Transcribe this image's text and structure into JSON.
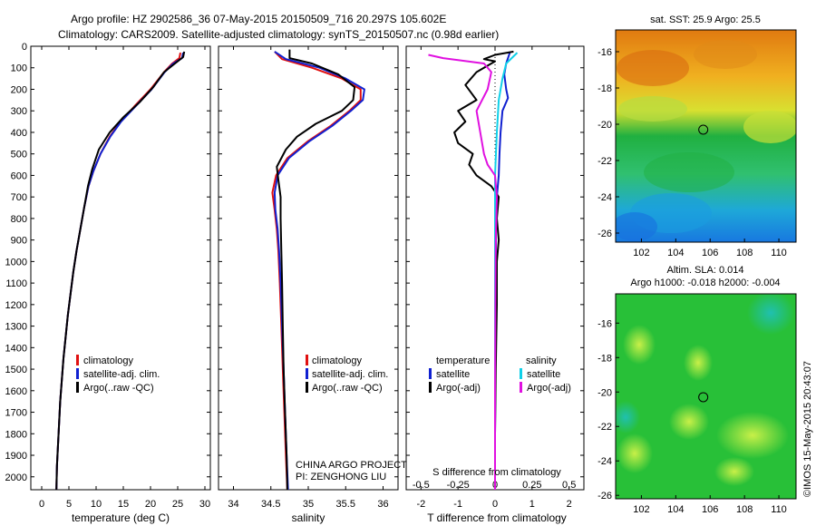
{
  "header": {
    "title_line1": "Argo profile: HZ 2902586_36 07-May-2015 20150509_716 20.297S 105.602E",
    "title_line2": "Climatology: CARS2009. Satellite-adjusted climatology: synTS_20150507.nc (0.98d earlier)"
  },
  "colors": {
    "climatology": "#e01010",
    "satellite": "#1020d0",
    "argo": "#000000",
    "sat_salinity": "#10d0e8",
    "argo_salinity": "#e010e0"
  },
  "chart_data": [
    {
      "id": "temperature",
      "type": "line",
      "xlabel": "temperature (deg C)",
      "ylabel": "",
      "xlim": [
        -2,
        31
      ],
      "ylim": [
        2060,
        0
      ],
      "xticks": [
        0,
        5,
        10,
        15,
        20,
        25,
        30
      ],
      "yticks": [
        0,
        100,
        200,
        300,
        400,
        500,
        600,
        700,
        800,
        900,
        1000,
        1100,
        1200,
        1300,
        1400,
        1500,
        1600,
        1700,
        1800,
        1900,
        2000
      ],
      "legend": [
        "climatology",
        "satellite-adj. clim.",
        "Argo(..raw -QC)"
      ],
      "series": [
        {
          "name": "climatology",
          "color_key": "climatology",
          "points": [
            [
              25.5,
              30
            ],
            [
              25.3,
              55
            ],
            [
              24,
              80
            ],
            [
              22.5,
              120
            ],
            [
              20,
              200
            ],
            [
              17,
              280
            ],
            [
              14.5,
              350
            ],
            [
              12.5,
              420
            ],
            [
              10.8,
              500
            ],
            [
              9.5,
              580
            ],
            [
              8.6,
              650
            ],
            [
              7.8,
              750
            ],
            [
              7.1,
              850
            ],
            [
              6.4,
              950
            ],
            [
              5.8,
              1050
            ],
            [
              5.3,
              1150
            ],
            [
              4.8,
              1250
            ],
            [
              4.4,
              1350
            ],
            [
              4,
              1450
            ],
            [
              3.7,
              1550
            ],
            [
              3.4,
              1650
            ],
            [
              3.2,
              1750
            ],
            [
              3,
              1850
            ],
            [
              2.8,
              1950
            ],
            [
              2.7,
              2060
            ]
          ]
        },
        {
          "name": "satellite-adj. clim.",
          "color_key": "satellite",
          "points": [
            [
              26,
              30
            ],
            [
              25.8,
              55
            ],
            [
              24.2,
              80
            ],
            [
              22.6,
              120
            ],
            [
              20.2,
              200
            ],
            [
              17.2,
              280
            ],
            [
              14.6,
              350
            ],
            [
              12.6,
              420
            ],
            [
              10.8,
              500
            ],
            [
              9.5,
              580
            ],
            [
              8.6,
              650
            ],
            [
              7.8,
              750
            ],
            [
              7.1,
              850
            ],
            [
              6.4,
              950
            ],
            [
              5.8,
              1050
            ],
            [
              5.3,
              1150
            ],
            [
              4.8,
              1250
            ],
            [
              4.4,
              1350
            ],
            [
              4,
              1450
            ],
            [
              3.7,
              1550
            ],
            [
              3.4,
              1650
            ],
            [
              3.2,
              1750
            ],
            [
              3,
              1850
            ],
            [
              2.8,
              1950
            ],
            [
              2.7,
              2060
            ]
          ]
        },
        {
          "name": "Argo(..raw -QC)",
          "color_key": "argo",
          "points": [
            [
              26.2,
              25
            ],
            [
              26,
              50
            ],
            [
              24.5,
              80
            ],
            [
              22.5,
              120
            ],
            [
              20.5,
              190
            ],
            [
              18,
              260
            ],
            [
              15,
              330
            ],
            [
              12.5,
              400
            ],
            [
              10.5,
              480
            ],
            [
              9.3,
              570
            ],
            [
              8.5,
              650
            ],
            [
              7.8,
              750
            ],
            [
              7.1,
              850
            ],
            [
              6.4,
              950
            ],
            [
              5.8,
              1050
            ],
            [
              5.3,
              1150
            ],
            [
              4.8,
              1250
            ],
            [
              4.4,
              1350
            ],
            [
              4,
              1450
            ],
            [
              3.7,
              1550
            ],
            [
              3.4,
              1650
            ],
            [
              3.2,
              1750
            ],
            [
              3,
              1850
            ],
            [
              2.8,
              1950
            ],
            [
              2.7,
              2060
            ]
          ]
        }
      ]
    },
    {
      "id": "salinity",
      "type": "line",
      "xlabel": "salinity",
      "xlim": [
        33.8,
        36.2
      ],
      "ylim": [
        2060,
        0
      ],
      "xticks": [
        34,
        34.5,
        35,
        35.5,
        36
      ],
      "legend": [
        "climatology",
        "satellite-adj. clim.",
        "Argo(..raw -QC)"
      ],
      "annotation": [
        "CHINA ARGO PROJECT",
        "PI: ZENGHONG LIU"
      ],
      "series": [
        {
          "name": "climatology",
          "color_key": "climatology",
          "points": [
            [
              34.55,
              25
            ],
            [
              34.65,
              60
            ],
            [
              35.05,
              100
            ],
            [
              35.45,
              150
            ],
            [
              35.7,
              200
            ],
            [
              35.7,
              250
            ],
            [
              35.55,
              300
            ],
            [
              35.3,
              370
            ],
            [
              35,
              440
            ],
            [
              34.72,
              520
            ],
            [
              34.57,
              600
            ],
            [
              34.52,
              680
            ],
            [
              34.55,
              760
            ],
            [
              34.58,
              850
            ],
            [
              34.6,
              950
            ],
            [
              34.62,
              1100
            ],
            [
              34.64,
              1300
            ],
            [
              34.66,
              1500
            ],
            [
              34.68,
              1700
            ],
            [
              34.7,
              1900
            ],
            [
              34.72,
              2060
            ]
          ]
        },
        {
          "name": "satellite-adj. clim.",
          "color_key": "satellite",
          "points": [
            [
              34.55,
              25
            ],
            [
              34.7,
              60
            ],
            [
              35.15,
              100
            ],
            [
              35.5,
              150
            ],
            [
              35.75,
              200
            ],
            [
              35.73,
              250
            ],
            [
              35.57,
              300
            ],
            [
              35.32,
              370
            ],
            [
              35.02,
              440
            ],
            [
              34.74,
              520
            ],
            [
              34.59,
              600
            ],
            [
              34.55,
              680
            ],
            [
              34.56,
              760
            ],
            [
              34.59,
              850
            ],
            [
              34.61,
              950
            ],
            [
              34.63,
              1100
            ],
            [
              34.65,
              1300
            ],
            [
              34.67,
              1500
            ],
            [
              34.69,
              1700
            ],
            [
              34.71,
              1900
            ],
            [
              34.73,
              2060
            ]
          ]
        },
        {
          "name": "Argo(..raw -QC)",
          "color_key": "argo",
          "points": [
            [
              34.75,
              15
            ],
            [
              34.75,
              55
            ],
            [
              35.05,
              80
            ],
            [
              35.4,
              130
            ],
            [
              35.62,
              190
            ],
            [
              35.6,
              250
            ],
            [
              35.45,
              300
            ],
            [
              35.1,
              360
            ],
            [
              34.85,
              420
            ],
            [
              34.7,
              480
            ],
            [
              34.58,
              560
            ],
            [
              34.6,
              620
            ],
            [
              34.63,
              700
            ],
            [
              34.63,
              800
            ],
            [
              34.64,
              950
            ],
            [
              34.65,
              1100
            ],
            [
              34.66,
              1300
            ],
            [
              34.67,
              1500
            ],
            [
              34.69,
              1700
            ],
            [
              34.71,
              1900
            ],
            [
              34.72,
              2060
            ]
          ]
        }
      ]
    },
    {
      "id": "difference",
      "type": "line",
      "xlabel": "T difference from climatology",
      "xlabel2": "S difference from climatology",
      "xlim": [
        -2.4,
        2.4
      ],
      "ylim": [
        2060,
        0
      ],
      "xticks": [
        -2,
        -1,
        0,
        1,
        2
      ],
      "xtick_labels_T": [
        "-2",
        "-1",
        "0",
        "1",
        "2"
      ],
      "xtick_labels_S": [
        "-0.5",
        "-0.25",
        "0",
        "0.25",
        "0.5"
      ],
      "legend_temperature": [
        "temperature",
        "satellite",
        "Argo(-adj)"
      ],
      "legend_salinity": [
        "salinity",
        "satellite",
        "Argo(-adj)"
      ],
      "series": [
        {
          "name": "T satellite",
          "color_key": "satellite",
          "points": [
            [
              0.4,
              30
            ],
            [
              0.3,
              80
            ],
            [
              0.25,
              130
            ],
            [
              0.3,
              200
            ],
            [
              0.35,
              240
            ],
            [
              0.2,
              300
            ],
            [
              0.15,
              400
            ],
            [
              0.12,
              500
            ],
            [
              0.1,
              600
            ],
            [
              0.05,
              700
            ],
            [
              0.03,
              800
            ],
            [
              0.02,
              1000
            ],
            [
              0.02,
              1200
            ],
            [
              0.01,
              1500
            ],
            [
              0,
              1800
            ],
            [
              0,
              2060
            ]
          ]
        },
        {
          "name": "T Argo(-adj)",
          "color_key": "argo",
          "points": [
            [
              0.5,
              25
            ],
            [
              0,
              40
            ],
            [
              -0.3,
              60
            ],
            [
              0,
              70
            ],
            [
              -0.5,
              120
            ],
            [
              -0.8,
              180
            ],
            [
              -0.5,
              250
            ],
            [
              -1.0,
              300
            ],
            [
              -0.8,
              350
            ],
            [
              -1.1,
              400
            ],
            [
              -1.0,
              450
            ],
            [
              -0.6,
              500
            ],
            [
              -0.7,
              550
            ],
            [
              -0.5,
              600
            ],
            [
              -0.1,
              650
            ],
            [
              0.1,
              700
            ],
            [
              0.05,
              800
            ],
            [
              0.1,
              900
            ],
            [
              0.05,
              1000
            ],
            [
              0.05,
              1200
            ],
            [
              0.02,
              1500
            ],
            [
              0,
              1800
            ],
            [
              0,
              2060
            ]
          ]
        },
        {
          "name": "S satellite",
          "color_key": "sat_salinity",
          "points": [
            [
              0.6,
              30
            ],
            [
              0.3,
              80
            ],
            [
              0.2,
              150
            ],
            [
              0.1,
              250
            ],
            [
              0.05,
              400
            ],
            [
              0,
              600
            ],
            [
              0,
              800
            ],
            [
              0,
              1200
            ],
            [
              0,
              1600
            ],
            [
              0,
              2060
            ]
          ]
        },
        {
          "name": "S Argo(-adj)",
          "color_key": "argo_salinity",
          "points": [
            [
              -1.8,
              40
            ],
            [
              -1.4,
              55
            ],
            [
              -0.3,
              80
            ],
            [
              -0.1,
              120
            ],
            [
              -0.2,
              200
            ],
            [
              -0.5,
              300
            ],
            [
              -0.4,
              400
            ],
            [
              -0.3,
              500
            ],
            [
              -0.2,
              550
            ],
            [
              0,
              600
            ],
            [
              0.05,
              700
            ],
            [
              0.02,
              900
            ],
            [
              0.01,
              1200
            ],
            [
              0,
              1600
            ],
            [
              0,
              2060
            ]
          ]
        }
      ]
    }
  ],
  "maps": {
    "sst_title": "sat. SST: 25.9  Argo: 25.5",
    "sla_title_line1": "Altim. SLA: 0.014",
    "sla_title_line2": "Argo h1000: -0.018 h2000: -0.004",
    "lon_ticks": [
      "102",
      "104",
      "106",
      "108",
      "110"
    ],
    "lat_ticks": [
      "-16",
      "-18",
      "-20",
      "-22",
      "-24",
      "-26"
    ],
    "float_marker": {
      "lon": 105.6,
      "lat": -20.3
    }
  },
  "credit": "©IMOS 15-May-2015 20:43:07"
}
